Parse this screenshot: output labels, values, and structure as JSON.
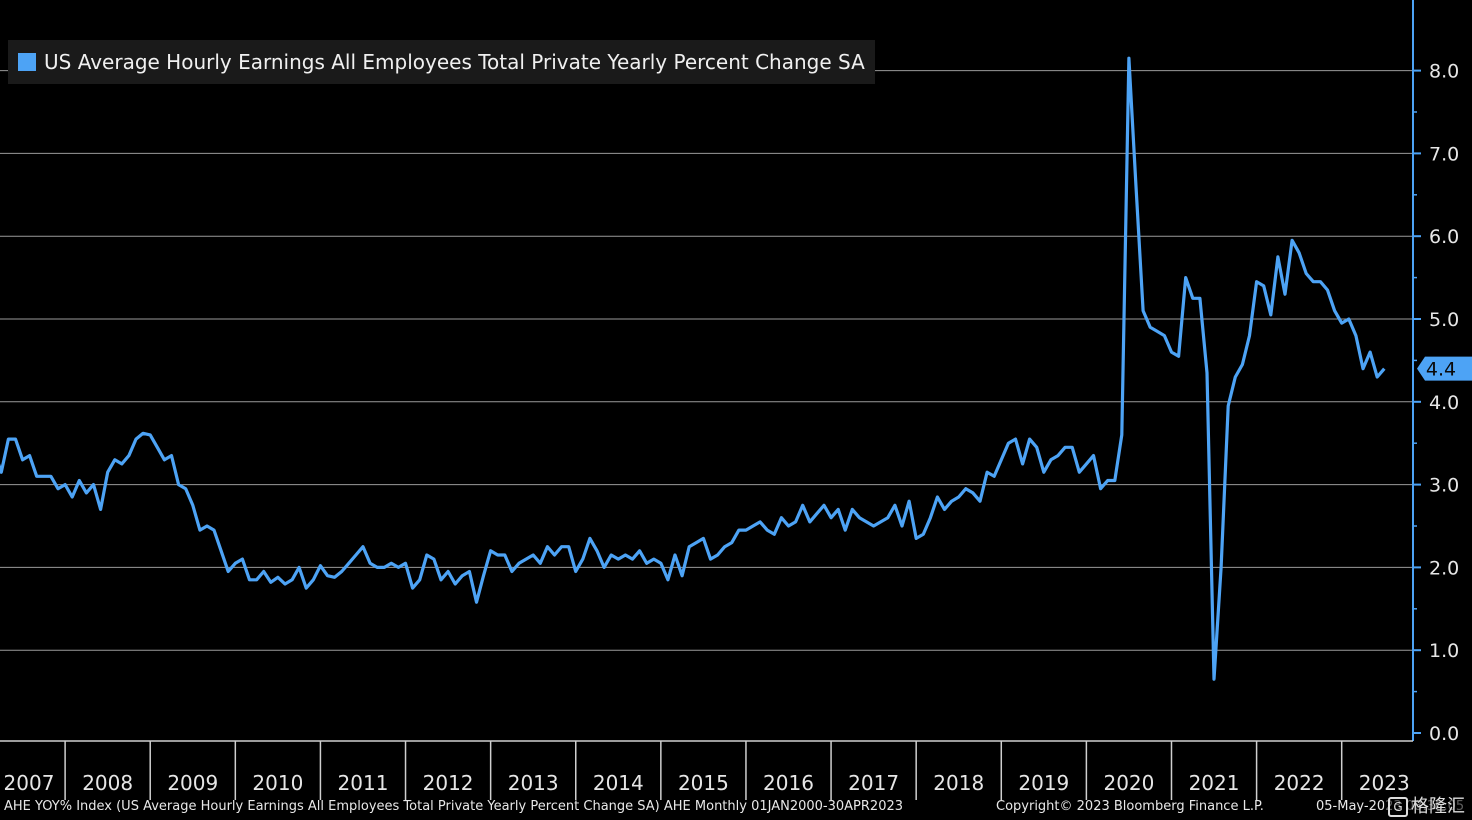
{
  "legend": {
    "label": "US Average Hourly Earnings All Employees Total Private Yearly Percent Change SA",
    "color": "#4da3f5"
  },
  "footer": {
    "left": "AHE YOY% Index (US Average Hourly Earnings All Employees Total Private Yearly Percent Change SA) AHE  Monthly 01JAN2000-30APR2023",
    "copyright": "Copyright© 2023 Bloomberg Finance L.P.",
    "date": "05-May-2023 08:36:05"
  },
  "watermark": {
    "icon": "gelonghui-logo-icon",
    "text": "格隆汇"
  },
  "chart_data": {
    "type": "line",
    "title": "",
    "xlabel": "",
    "ylabel": "",
    "ylim": [
      0,
      8.8
    ],
    "yticks": [
      0.0,
      1.0,
      2.0,
      3.0,
      4.0,
      5.0,
      6.0,
      7.0,
      8.0
    ],
    "ytick_labels": [
      "0.0",
      "1.0",
      "2.0",
      "3.0",
      "4.0",
      "5.0",
      "6.0",
      "7.0",
      "8.0"
    ],
    "xlim": [
      2007.0,
      2023.45
    ],
    "xtick_labels": [
      "2007",
      "2008",
      "2009",
      "2010",
      "2011",
      "2012",
      "2013",
      "2014",
      "2015",
      "2016",
      "2017",
      "2018",
      "2019",
      "2020",
      "2021",
      "2022",
      "2023"
    ],
    "grid": true,
    "axis_side": "right",
    "last_value_label": "4.4",
    "line_color": "#4da3f5",
    "series": [
      {
        "name": "US Average Hourly Earnings All Employees Total Private Yearly Percent Change SA",
        "start": "2007-03",
        "values": [
          3.4,
          3.15,
          3.55,
          3.55,
          3.3,
          3.35,
          3.1,
          3.1,
          3.1,
          2.95,
          3.0,
          2.85,
          3.05,
          2.9,
          3.0,
          2.7,
          3.15,
          3.3,
          3.25,
          3.35,
          3.55,
          3.62,
          3.6,
          3.45,
          3.3,
          3.35,
          3.0,
          2.95,
          2.75,
          2.45,
          2.5,
          2.45,
          2.2,
          1.95,
          2.05,
          2.1,
          1.85,
          1.85,
          1.95,
          1.82,
          1.88,
          1.8,
          1.85,
          2.0,
          1.75,
          1.85,
          2.02,
          1.9,
          1.88,
          1.95,
          2.05,
          2.15,
          2.25,
          2.05,
          2.0,
          2.0,
          2.05,
          2.0,
          2.05,
          1.75,
          1.85,
          2.15,
          2.1,
          1.85,
          1.95,
          1.8,
          1.9,
          1.95,
          1.58,
          1.9,
          2.2,
          2.15,
          2.15,
          1.95,
          2.05,
          2.1,
          2.15,
          2.05,
          2.25,
          2.15,
          2.25,
          2.25,
          1.95,
          2.1,
          2.35,
          2.2,
          2.0,
          2.15,
          2.1,
          2.15,
          2.1,
          2.2,
          2.05,
          2.1,
          2.05,
          1.85,
          2.15,
          1.9,
          2.25,
          2.3,
          2.35,
          2.1,
          2.15,
          2.25,
          2.3,
          2.45,
          2.45,
          2.5,
          2.55,
          2.45,
          2.4,
          2.6,
          2.5,
          2.55,
          2.75,
          2.55,
          2.65,
          2.75,
          2.6,
          2.7,
          2.45,
          2.7,
          2.6,
          2.55,
          2.5,
          2.55,
          2.6,
          2.75,
          2.5,
          2.8,
          2.35,
          2.4,
          2.6,
          2.85,
          2.7,
          2.8,
          2.85,
          2.95,
          2.9,
          2.8,
          3.15,
          3.1,
          3.3,
          3.5,
          3.55,
          3.25,
          3.55,
          3.45,
          3.15,
          3.3,
          3.35,
          3.45,
          3.45,
          3.15,
          3.25,
          3.35,
          2.95,
          3.05,
          3.05,
          3.6,
          8.15,
          6.6,
          5.1,
          4.9,
          4.85,
          4.8,
          4.6,
          4.55,
          5.5,
          5.25,
          5.25,
          4.35,
          0.65,
          2.0,
          3.95,
          4.3,
          4.45,
          4.8,
          5.45,
          5.4,
          5.05,
          5.75,
          5.3,
          5.95,
          5.8,
          5.55,
          5.45,
          5.45,
          5.35,
          5.1,
          4.95,
          5.0,
          4.8,
          4.4,
          4.6,
          4.3,
          4.4
        ]
      }
    ]
  }
}
